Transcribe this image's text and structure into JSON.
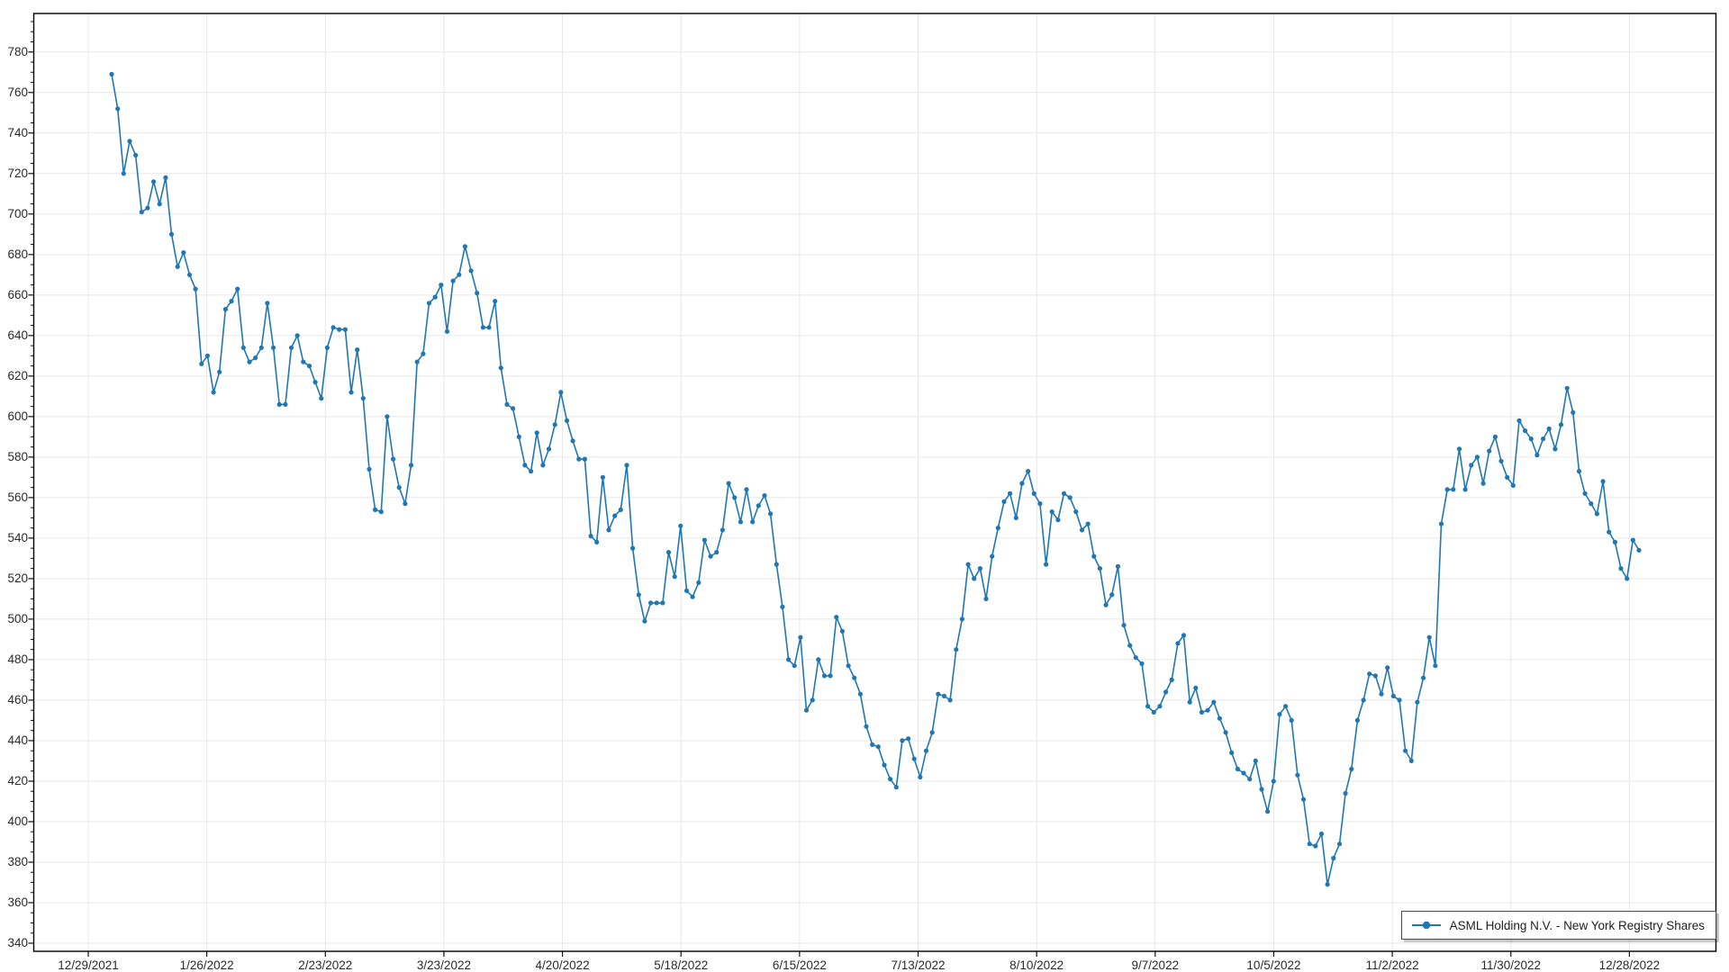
{
  "legend": {
    "label": "ASML Holding N.V. - New York Registry Shares"
  },
  "colors": {
    "series_line": "#1f77b4",
    "marker_fill": "#1f77b4",
    "grid_line": "#e7e7e7",
    "axis_box": "#000000",
    "tick_mark": "#111111",
    "tick_text": "#2b2b2b",
    "background": "#ffffff",
    "legend_border": "#4a4a4a"
  },
  "chart_data": {
    "type": "line",
    "title": "",
    "xlabel": "",
    "ylabel": "",
    "grid": "both",
    "legend_position": "lower right",
    "x_axis_type": "date",
    "x_start_date": "1/3/2022",
    "x_end_date": "12/30/2022",
    "sampling": "daily closing price",
    "x_tick_labels": [
      "12/29/2021",
      "1/26/2022",
      "2/23/2022",
      "3/23/2022",
      "4/20/2022",
      "5/18/2022",
      "6/15/2022",
      "7/13/2022",
      "8/10/2022",
      "9/7/2022",
      "10/5/2022",
      "11/2/2022",
      "11/30/2022",
      "12/28/2022"
    ],
    "y_ticks": [
      340,
      360,
      380,
      400,
      420,
      440,
      460,
      480,
      500,
      520,
      540,
      560,
      580,
      600,
      620,
      640,
      660,
      680,
      700,
      720,
      740,
      760,
      780
    ],
    "y_minor_tick_step": 5,
    "ylim": [
      336,
      799
    ],
    "series": [
      {
        "name": "ASML Holding N.V. - New York Registry Shares",
        "color": "#1f77b4",
        "marker": "circle",
        "values": [
          769,
          752,
          720,
          736,
          729,
          701,
          703,
          716,
          705,
          718,
          690,
          674,
          681,
          670,
          663,
          626,
          630,
          612,
          622,
          653,
          657,
          663,
          634,
          627,
          629,
          634,
          656,
          634,
          606,
          606,
          634,
          640,
          627,
          625,
          617,
          609,
          634,
          644,
          643,
          643,
          612,
          633,
          609,
          574,
          554,
          553,
          600,
          579,
          565,
          557,
          576,
          627,
          631,
          656,
          659,
          665,
          642,
          667,
          670,
          684,
          672,
          661,
          644,
          644,
          657,
          624,
          606,
          604,
          590,
          576,
          573,
          592,
          576,
          584,
          596,
          612,
          598,
          588,
          579,
          579,
          541,
          538,
          570,
          544,
          551,
          554,
          576,
          535,
          512,
          499,
          508,
          508,
          508,
          533,
          521,
          546,
          514,
          511,
          518,
          539,
          531,
          533,
          544,
          567,
          560,
          548,
          564,
          548,
          556,
          561,
          552,
          527,
          506,
          480,
          477,
          491,
          455,
          460,
          480,
          472,
          472,
          501,
          494,
          477,
          471,
          463,
          447,
          438,
          437,
          428,
          421,
          417,
          440,
          441,
          431,
          422,
          435,
          444,
          463,
          462,
          460,
          485,
          500,
          527,
          520,
          525,
          510,
          531,
          545,
          558,
          562,
          550,
          567,
          573,
          562,
          557,
          527,
          553,
          549,
          562,
          560,
          553,
          544,
          547,
          531,
          525,
          507,
          512,
          526,
          497,
          487,
          481,
          478,
          457,
          454,
          457,
          464,
          470,
          488,
          492,
          459,
          466,
          454,
          455,
          459,
          451,
          444,
          434,
          426,
          424,
          421,
          430,
          416,
          405,
          420,
          453,
          457,
          450,
          423,
          411,
          389,
          388,
          394,
          369,
          382,
          389,
          414,
          426,
          450,
          460,
          473,
          472,
          463,
          476,
          462,
          460,
          435,
          430,
          459,
          471,
          491,
          477,
          547,
          564,
          564,
          584,
          564,
          576,
          580,
          567,
          583,
          590,
          578,
          570,
          566,
          598,
          593,
          589,
          581,
          589,
          594,
          584,
          596,
          614,
          602,
          573,
          562,
          557,
          552,
          568,
          543,
          538,
          525,
          520,
          539,
          534
        ]
      }
    ]
  }
}
